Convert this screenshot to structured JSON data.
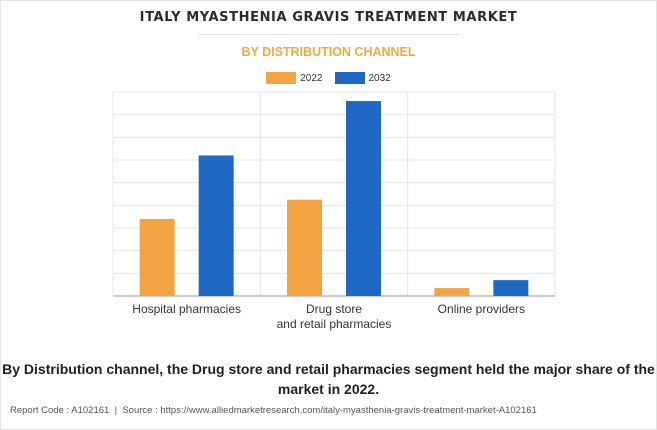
{
  "title": "ITALY MYASTHENIA GRAVIS TREATMENT MARKET",
  "subtitle": "BY DISTRIBUTION CHANNEL",
  "caption": "By Distribution channel, the Drug store and retail pharmacies segment held the major share of the market in 2022.",
  "footer": {
    "report_code": "Report Code : A102161",
    "separator": "|",
    "source": "Source : https://www.alliedmarketresearch.com/italy-myasthenia-gravis-treatment-market-A102161"
  },
  "colors": {
    "series_2022": "#f2a443",
    "series_2032": "#1f69c4",
    "grid": "#e6e6e6",
    "axis": "#9a9a9a"
  },
  "chart_data": {
    "type": "bar",
    "title": "ITALY MYASTHENIA GRAVIS TREATMENT MARKET",
    "subtitle": "BY DISTRIBUTION CHANNEL",
    "categories": [
      [
        "Hospital pharmacies"
      ],
      [
        "Drug store",
        "and retail pharmacies"
      ],
      [
        "Online providers"
      ]
    ],
    "series": [
      {
        "name": "2022",
        "values": [
          34,
          42.5,
          3.5
        ]
      },
      {
        "name": "2032",
        "values": [
          62,
          86,
          7
        ]
      }
    ],
    "ylim": [
      0,
      90
    ],
    "grid": true,
    "legend": "top-center",
    "y_tick_labels_shown": false
  }
}
